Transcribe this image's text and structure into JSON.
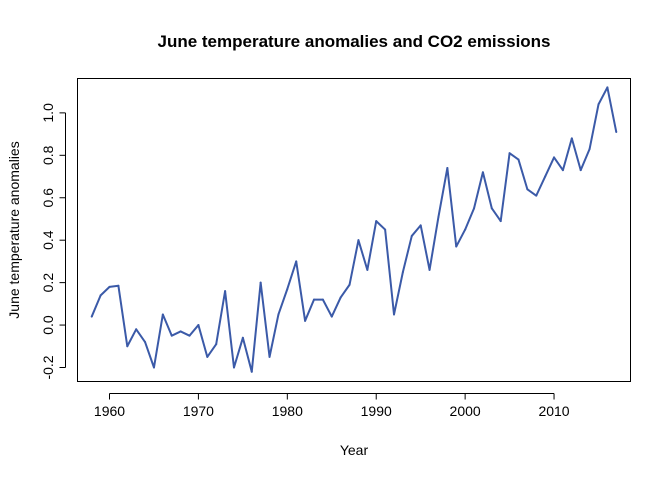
{
  "chart_data": {
    "type": "line",
    "title": "June temperature anomalies and CO2 emissions",
    "xlabel": "Year",
    "ylabel": "June temperature anomalies",
    "xlim": [
      1956.4,
      2018.6
    ],
    "ylim": [
      -0.266,
      1.162
    ],
    "xticks": [
      1960,
      1970,
      1980,
      1990,
      2000,
      2010
    ],
    "yticks": [
      -0.2,
      0.0,
      0.2,
      0.4,
      0.6,
      0.8,
      1.0
    ],
    "ytick_labels": [
      "-0.2",
      "0.0",
      "0.2",
      "0.4",
      "0.6",
      "0.8",
      "1.0"
    ],
    "grid": false,
    "line_color": "#3b5aa8",
    "series": [
      {
        "name": "June temperature anomalies",
        "x": [
          1958,
          1959,
          1960,
          1961,
          1962,
          1963,
          1964,
          1965,
          1966,
          1967,
          1968,
          1969,
          1970,
          1971,
          1972,
          1973,
          1974,
          1975,
          1976,
          1977,
          1978,
          1979,
          1980,
          1981,
          1982,
          1983,
          1984,
          1985,
          1986,
          1987,
          1988,
          1989,
          1990,
          1991,
          1992,
          1993,
          1994,
          1995,
          1996,
          1997,
          1998,
          1999,
          2000,
          2001,
          2002,
          2003,
          2004,
          2005,
          2006,
          2007,
          2008,
          2009,
          2010,
          2011,
          2012,
          2013,
          2014,
          2015,
          2016,
          2017
        ],
        "values": [
          0.04,
          0.14,
          0.18,
          0.185,
          -0.1,
          -0.02,
          -0.08,
          -0.2,
          0.05,
          -0.05,
          -0.03,
          -0.05,
          0.0,
          -0.15,
          -0.09,
          0.16,
          -0.2,
          -0.06,
          -0.22,
          0.2,
          -0.15,
          0.05,
          0.17,
          0.3,
          0.02,
          0.12,
          0.12,
          0.04,
          0.13,
          0.19,
          0.4,
          0.26,
          0.49,
          0.45,
          0.05,
          0.25,
          0.42,
          0.47,
          0.26,
          0.51,
          0.74,
          0.37,
          0.45,
          0.55,
          0.72,
          0.55,
          0.49,
          0.81,
          0.78,
          0.64,
          0.61,
          0.7,
          0.79,
          0.73,
          0.88,
          0.73,
          0.83,
          1.04,
          1.12,
          0.91
        ]
      }
    ]
  }
}
